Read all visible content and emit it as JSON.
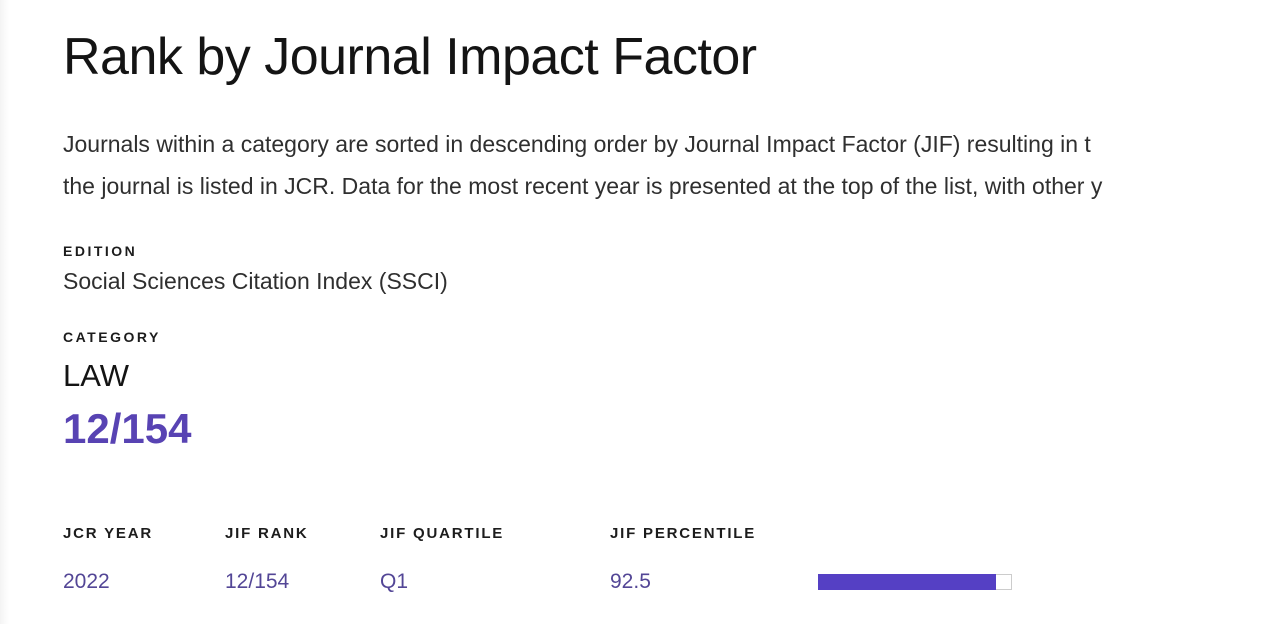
{
  "colors": {
    "accent_purple": "#5843b3",
    "link_purple": "#534696",
    "bar_fill": "#5540c4",
    "bar_track": "#ffffff",
    "bar_border": "#cccccc",
    "heading_text": "#141414",
    "body_text": "#2f2f2f",
    "label_text": "#1c1c1c"
  },
  "header": {
    "title": "Rank by Journal Impact Factor"
  },
  "description": {
    "line1": "Journals within a category are sorted in descending order by Journal Impact Factor (JIF) resulting in t",
    "line2": "the journal is listed in JCR. Data for the most recent year is presented at the top of the list, with other y"
  },
  "edition": {
    "label": "EDITION",
    "value": "Social Sciences Citation Index (SSCI)"
  },
  "category": {
    "label": "CATEGORY",
    "name": "LAW",
    "rank": "12/154"
  },
  "rank_table": {
    "columns": {
      "year": "JCR YEAR",
      "rank": "JIF RANK",
      "quartile": "JIF QUARTILE",
      "percentile": "JIF PERCENTILE"
    },
    "rows": [
      {
        "jcr_year": "2022",
        "jif_rank": "12/154",
        "jif_quartile": "Q1",
        "jif_percentile": "92.5",
        "percentile_bar_percent": 92.5
      }
    ]
  }
}
